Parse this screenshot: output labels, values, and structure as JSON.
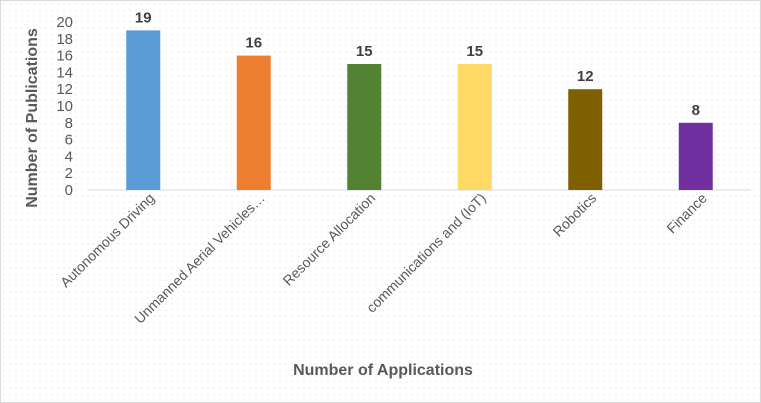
{
  "chart_data": {
    "type": "bar",
    "categories": [
      "Autonomous Driving",
      "Unmanned Aerial Vehicles…",
      "Resource Allocation",
      "communications and (IoT)",
      "Robotics",
      "Finance"
    ],
    "values": [
      19,
      16,
      15,
      15,
      12,
      8
    ],
    "colors": [
      "#5b9bd5",
      "#ed7d31",
      "#548235",
      "#ffd966",
      "#7f6000",
      "#7030a0"
    ],
    "title": "",
    "xlabel": "Number of Applications",
    "ylabel": "Number of Publications",
    "ylim": [
      0,
      20
    ],
    "yticks": [
      "0",
      "2",
      "4",
      "6",
      "8",
      "10",
      "12",
      "14",
      "16",
      "18",
      "20"
    ],
    "grid": false,
    "legend": "none",
    "data_labels": true
  }
}
